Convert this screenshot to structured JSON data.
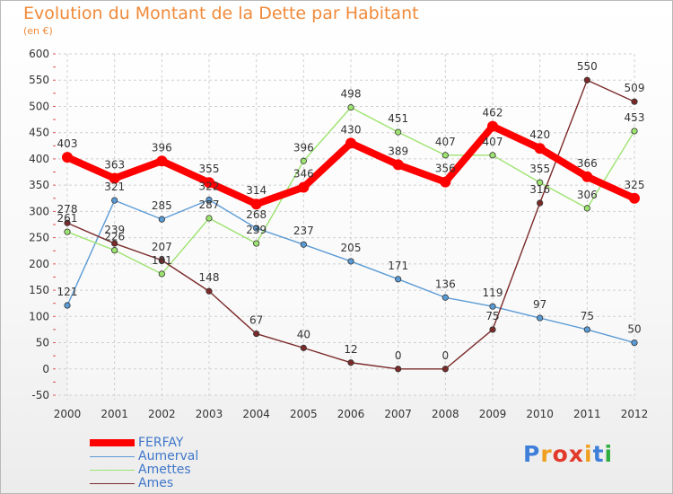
{
  "title": "Evolution du Montant de la Dette par Habitant",
  "subtitle": "(en €)",
  "logo": "Proxiti",
  "logo_colors": [
    "#3f7fd9",
    "#f0a020",
    "#e23a2a",
    "#e23a2a",
    "#f0a020",
    "#3f7fd9",
    "#2fae3f"
  ],
  "chart_data": {
    "type": "line",
    "x": [
      "2000",
      "2001",
      "2002",
      "2003",
      "2004",
      "2005",
      "2006",
      "2007",
      "2008",
      "2009",
      "2010",
      "2011",
      "2012"
    ],
    "ylim": [
      -50,
      600
    ],
    "yticks": [
      -50,
      0,
      50,
      100,
      150,
      200,
      250,
      300,
      350,
      400,
      450,
      500,
      550,
      600
    ],
    "grid": true,
    "legend_position": "bottom-left",
    "series": [
      {
        "name": "FERFAY",
        "color": "#ff0000",
        "emphasis": true,
        "values": [
          403,
          363,
          396,
          355,
          314,
          346,
          430,
          389,
          356,
          462,
          420,
          366,
          325
        ],
        "labels": [
          "403",
          "363",
          "396",
          "355",
          "314",
          "346",
          "430",
          "389",
          "356",
          "462",
          "420",
          "366",
          "325"
        ]
      },
      {
        "name": "Aumerval",
        "color": "#5b9bd5",
        "values": [
          121,
          321,
          285,
          322,
          268,
          237,
          205,
          171,
          136,
          119,
          97,
          75,
          50
        ],
        "labels": [
          "121",
          "321",
          "285",
          "322",
          "268",
          "237",
          "205",
          "171",
          "136",
          "119",
          "97",
          "75",
          "50"
        ]
      },
      {
        "name": "Amettes",
        "color": "#9de36f",
        "values": [
          261,
          226,
          181,
          287,
          239,
          396,
          498,
          451,
          407,
          407,
          355,
          306,
          453
        ],
        "labels": [
          "261",
          "226",
          "181",
          "287",
          "239",
          "396",
          "498",
          "451",
          "407",
          "407",
          "355",
          "306",
          "453"
        ]
      },
      {
        "name": "Ames",
        "color": "#7b2a2a",
        "values": [
          278,
          239,
          207,
          148,
          67,
          40,
          12,
          0,
          0,
          75,
          316,
          550,
          509
        ],
        "labels": [
          "278",
          "239",
          "207",
          "148",
          "67",
          "40",
          "12",
          "0",
          "0",
          "75",
          "316",
          "550",
          "509"
        ]
      }
    ]
  }
}
